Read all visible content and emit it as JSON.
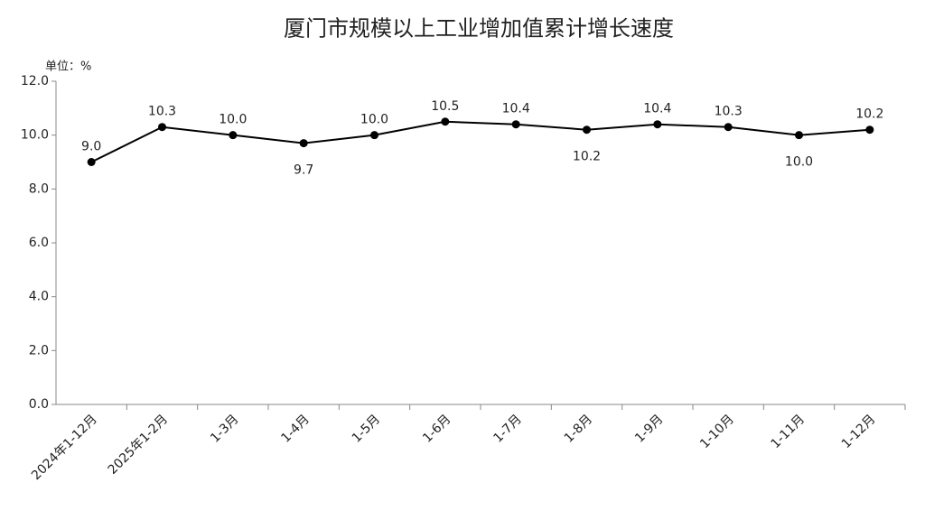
{
  "chart_data": {
    "type": "line",
    "title": "厦门市规模以上工业增加值累计增长速度",
    "y_label": "单位：%",
    "categories": [
      "2024年1-12月",
      "2025年1-2月",
      "1-3月",
      "1-4月",
      "1-5月",
      "1-6月",
      "1-7月",
      "1-8月",
      "1-9月",
      "1-10月",
      "1-11月",
      "1-12月"
    ],
    "values": [
      9.0,
      10.3,
      10.0,
      9.7,
      10.0,
      10.5,
      10.4,
      10.2,
      10.4,
      10.3,
      10.0,
      10.2
    ],
    "value_labels": [
      "9.0",
      "10.3",
      "10.0",
      "9.7",
      "10.0",
      "10.5",
      "10.4",
      "10.2",
      "10.4",
      "10.3",
      "10.0",
      "10.2"
    ],
    "color": "#000000",
    "ylim": [
      0,
      12
    ],
    "yticks": [
      {
        "value": 0,
        "label": "0.0"
      },
      {
        "value": 2,
        "label": "2.0"
      },
      {
        "value": 4,
        "label": "4.0"
      },
      {
        "value": 6,
        "label": "6.0"
      },
      {
        "value": 8,
        "label": "8.0"
      },
      {
        "value": 10,
        "label": "10.0"
      },
      {
        "value": 12,
        "label": "12.0"
      }
    ],
    "grid": false
  }
}
